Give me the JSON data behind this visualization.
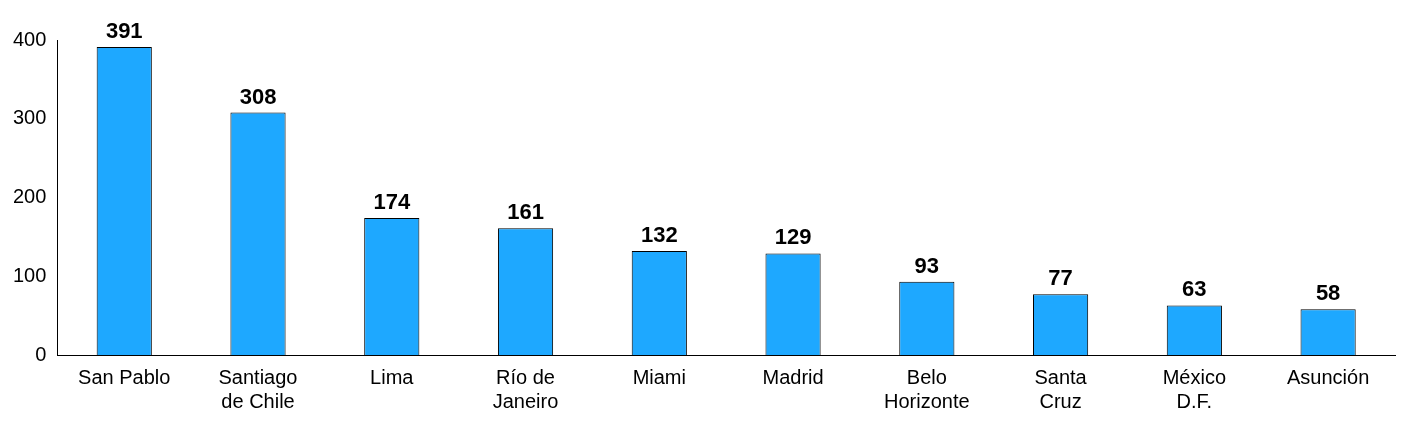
{
  "chart_data": {
    "type": "bar",
    "categories": [
      "San Pablo",
      "Santiago de Chile",
      "Lima",
      "Río de Janeiro",
      "Miami",
      "Madrid",
      "Belo Horizonte",
      "Santa Cruz",
      "México D.F.",
      "Asunción"
    ],
    "values": [
      391,
      308,
      174,
      161,
      132,
      129,
      93,
      77,
      63,
      58
    ],
    "color": "#1ea8ff",
    "ylim": [
      0,
      400
    ],
    "yticks": [
      0,
      100,
      200,
      300,
      400
    ],
    "grid": false,
    "legend": false,
    "data_labels": true
  }
}
